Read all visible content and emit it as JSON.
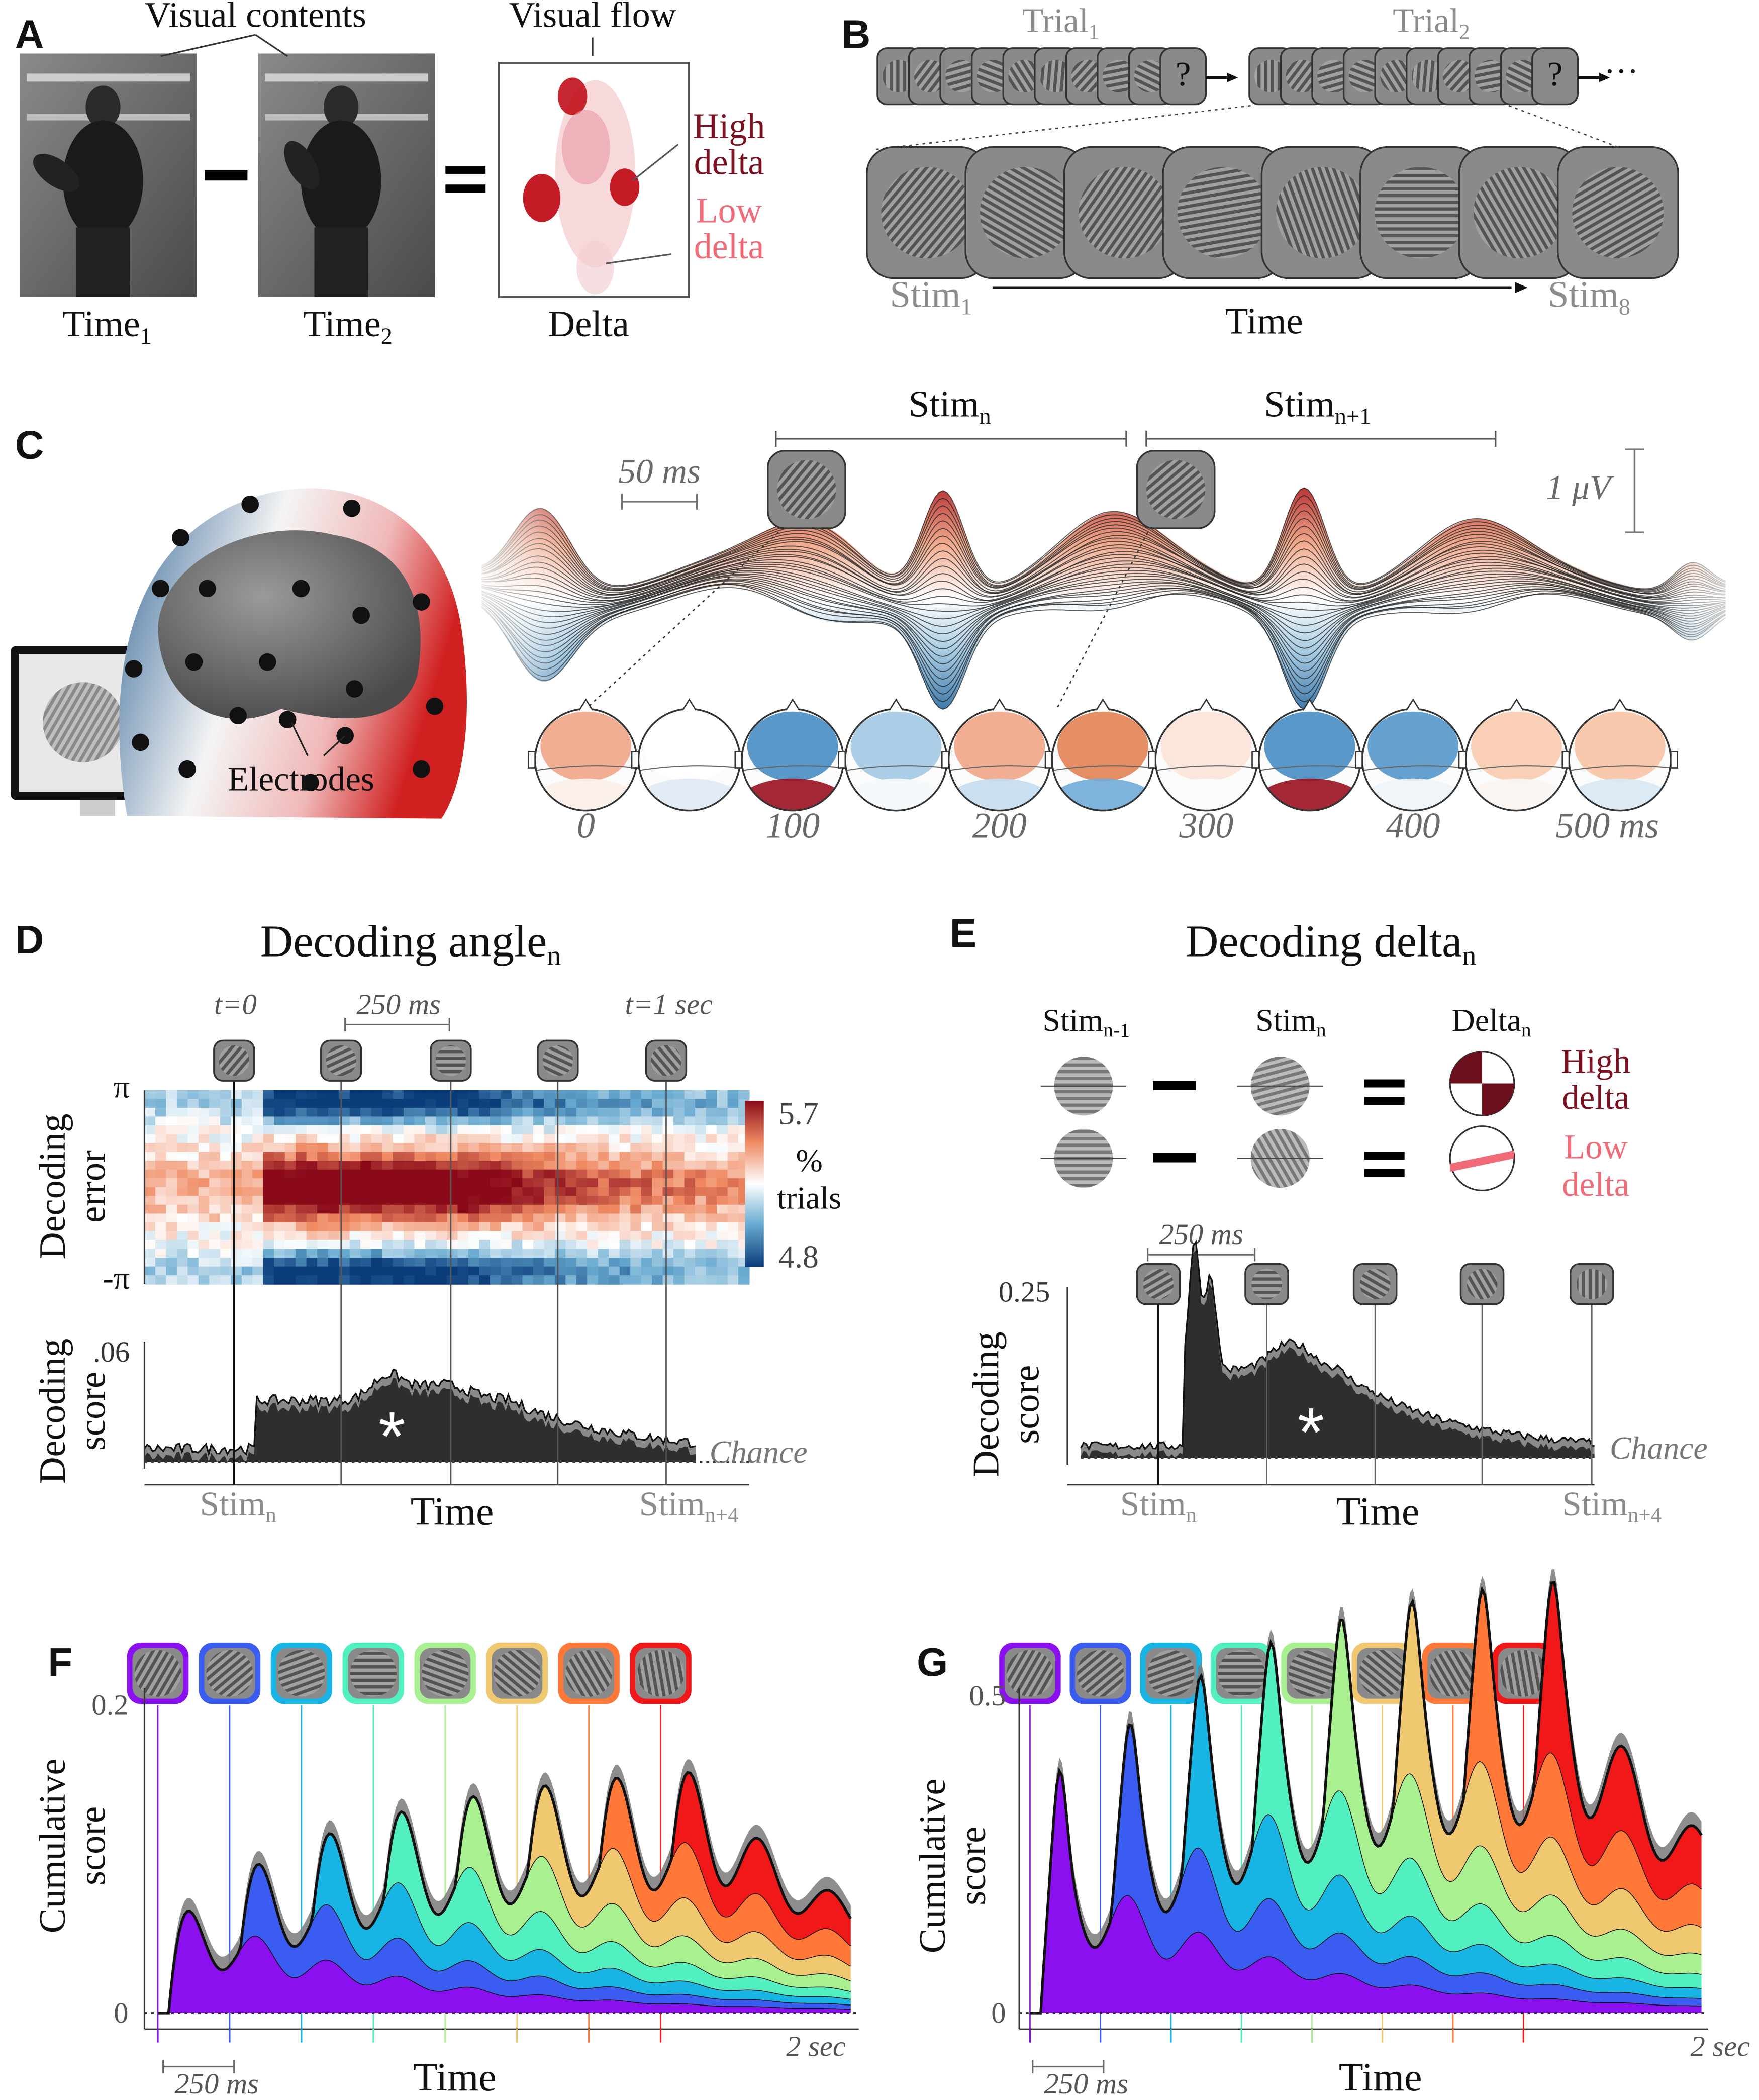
{
  "panel_labels": [
    "A",
    "B",
    "C",
    "D",
    "E",
    "F",
    "G"
  ],
  "panel_a": {
    "visual_contents": "Visual contents",
    "visual_flow": "Visual flow",
    "high_delta": [
      "High",
      "delta"
    ],
    "low_delta": [
      "Low",
      "delta"
    ],
    "images": [
      {
        "label": "Time",
        "sub": "1"
      },
      {
        "label": "Time",
        "sub": "2"
      },
      {
        "label": "Delta"
      }
    ]
  },
  "panel_b": {
    "trials": [
      {
        "label": "Trial",
        "sub": "1",
        "query": "?"
      },
      {
        "label": "Trial",
        "sub": "2",
        "query": "?"
      }
    ],
    "ellipsis": "···",
    "first_stim": {
      "label": "Stim",
      "sub": "1"
    },
    "last_stim": {
      "label": "Stim",
      "sub": "8"
    },
    "axis": "Time"
  },
  "panel_c": {
    "stims": [
      {
        "label": "Stim",
        "sub": "n"
      },
      {
        "label": "Stim",
        "sub": "n+1"
      }
    ],
    "time_scale": "50 ms",
    "voltage_scale": "1 μV",
    "electrodes": "Electrodes",
    "topo_times": [
      "0",
      "100",
      "200",
      "300",
      "400",
      "500 ms"
    ]
  },
  "panel_d": {
    "title": "Decoding angle",
    "title_sub": "n",
    "time_marks": [
      "t=0",
      "250 ms",
      "t=1 sec"
    ],
    "heatmap_ylabel": [
      "Decoding",
      "error"
    ],
    "heatmap_yticks": [
      "π",
      "-π"
    ],
    "colorbar": {
      "max": "5.7",
      "min": "4.8",
      "label": [
        "%",
        "trials"
      ]
    },
    "score_ylabel": [
      "Decoding",
      "score"
    ],
    "score_ytick": ".06",
    "significance": "*",
    "chance": "Chance",
    "x_start": {
      "label": "Stim",
      "sub": "n"
    },
    "x_end": {
      "label": "Stim",
      "sub": "n+4"
    },
    "xlabel": "Time"
  },
  "panel_e": {
    "title": "Decoding delta",
    "title_sub": "n",
    "examples": [
      {
        "label": "Stim",
        "sub": "n-1"
      },
      {
        "label": "Stim",
        "sub": "n"
      },
      {
        "label": "Delta",
        "sub": "n"
      }
    ],
    "high_delta": [
      "High",
      "delta"
    ],
    "low_delta": [
      "Low",
      "delta"
    ],
    "time_mark": "250 ms",
    "score_ytick": "0.25",
    "score_ylabel": [
      "Decoding",
      "score"
    ],
    "significance": "*",
    "chance": "Chance",
    "x_start": {
      "label": "Stim",
      "sub": "n"
    },
    "x_end": {
      "label": "Stim",
      "sub": "n+4"
    },
    "xlabel": "Time"
  },
  "panel_f": {
    "ylabel": [
      "Cumulative",
      "score"
    ],
    "yticks": [
      "0",
      "0.2"
    ],
    "x_end": "2 sec",
    "time_mark": "250 ms",
    "xlabel": "Time"
  },
  "panel_g": {
    "ylabel": [
      "Cumulative",
      "score"
    ],
    "yticks": [
      "0",
      "0.5"
    ],
    "x_end": "2 sec",
    "time_mark": "250 ms",
    "xlabel": "Time"
  }
}
